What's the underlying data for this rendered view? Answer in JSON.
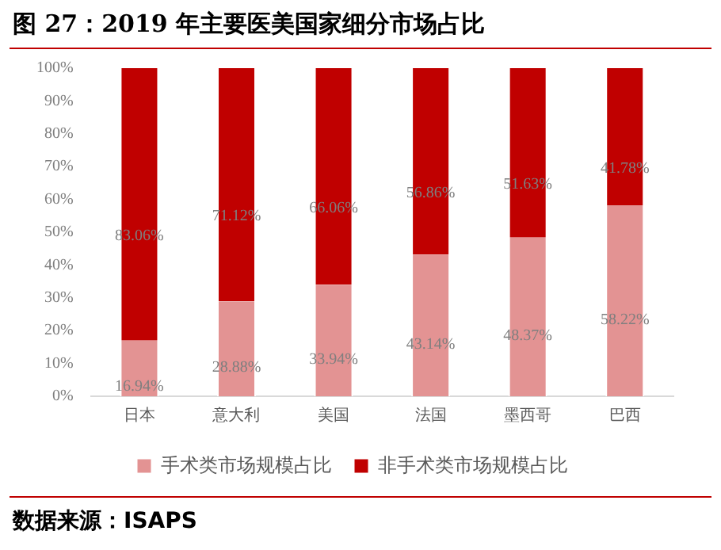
{
  "chart_data": {
    "type": "bar",
    "title": "图 27：2019 年主要医美国家细分市场占比",
    "categories": [
      "日本",
      "意大利",
      "美国",
      "法国",
      "墨西哥",
      "巴西"
    ],
    "stacked": true,
    "series": [
      {
        "name": "手术类市场规模占比",
        "color": "#e39393",
        "values": [
          16.94,
          28.88,
          33.94,
          43.14,
          48.37,
          58.22
        ],
        "value_labels": [
          "16.94%",
          "28.88%",
          "33.94%",
          "43.14%",
          "48.37%",
          "58.22%"
        ]
      },
      {
        "name": "非手术类市场规模占比",
        "color": "#c00000",
        "values": [
          83.06,
          71.12,
          66.06,
          56.86,
          51.63,
          41.78
        ],
        "value_labels": [
          "83.06%",
          "71.12%",
          "66.06%",
          "56.86%",
          "51.63%",
          "41.78%"
        ]
      }
    ],
    "ylim": [
      0,
      100
    ],
    "yticks": [
      {
        "value": 0,
        "label": "0%"
      },
      {
        "value": 10,
        "label": "10%"
      },
      {
        "value": 20,
        "label": "20%"
      },
      {
        "value": 30,
        "label": "30%"
      },
      {
        "value": 40,
        "label": "40%"
      },
      {
        "value": 50,
        "label": "50%"
      },
      {
        "value": 60,
        "label": "60%"
      },
      {
        "value": 70,
        "label": "70%"
      },
      {
        "value": 80,
        "label": "80%"
      },
      {
        "value": 90,
        "label": "90%"
      },
      {
        "value": 100,
        "label": "100%"
      }
    ],
    "legend": "bottom",
    "annotations": [
      "数据来源：ISAPS"
    ]
  }
}
